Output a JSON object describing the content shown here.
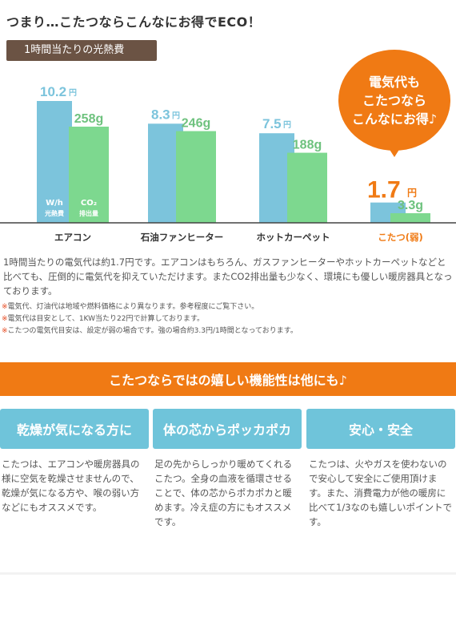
{
  "header": {
    "title": "つまり…こたつならこんなにお得でECO！",
    "subtitle": "1時間当たりの光熱費"
  },
  "bubble": {
    "line1": "電気代も",
    "line2": "こたつなら",
    "line3": "こんなにお得♪"
  },
  "chart_data": {
    "type": "bar",
    "title": "1時間当たりの光熱費",
    "categories": [
      "エアコン",
      "石油ファンヒーター",
      "ホットカーペット",
      "こたつ(弱)"
    ],
    "series": [
      {
        "name": "W/h 光熱費",
        "unit": "円",
        "values": [
          10.2,
          8.3,
          7.5,
          1.7
        ],
        "color": "#7cc4dc"
      },
      {
        "name": "CO₂ 排出量",
        "unit": "g",
        "values": [
          258,
          246,
          188,
          3.3
        ],
        "color": "#7dd88f"
      }
    ],
    "value_labels": {
      "cost": [
        "10.2",
        "8.3",
        "7.5",
        "1.7"
      ],
      "co2": [
        "258g",
        "246g",
        "188g",
        "3.3g"
      ]
    },
    "in_bar_labels": {
      "cost": [
        "W/h",
        "光熱費"
      ],
      "co2": [
        "CO₂",
        "排出量"
      ]
    },
    "cost_unit": "円",
    "highlight_category": "こたつ(弱)",
    "highlight_color": "#f07a14",
    "label_colors": {
      "cost": "#7cc4dc",
      "co2": "#6ec27e"
    },
    "legend": "in-bar",
    "grid": false
  },
  "description": "1時間当たりの電気代は約1.7円です。エアコンはもちろん、ガスファンヒーターやホットカーペットなどと比べても、圧倒的に電気代を抑えていただけます。またCO2排出量も少なく、環境にも優しい暖房器具となっております。",
  "notes": [
    {
      "mark": "※",
      "text": "電気代、灯油代は地域や燃料価格により異なります。参考程度にご覧下さい。"
    },
    {
      "mark": "※",
      "text": "電気代は目安として、1KW当たり22円で計算しております。"
    },
    {
      "mark": "※",
      "text": "こたつの電気代目安は、設定が弱の場合です。強の場合約3.3円/1時間となっております。"
    }
  ],
  "banner": "こたつならではの嬉しい機能性は他にも♪",
  "features": [
    {
      "heading": "乾燥が気になる方に",
      "text": "こたつは、エアコンや暖房器具の様に空気を乾燥させませんので、乾燥が気になる方や、喉の弱い方などにもオススメです。"
    },
    {
      "heading": "体の芯からポッカポカ",
      "text": "足の先からしっかり暖めてくれるこたつ。全身の血液を循環させることで、体の芯からポカポカと暖めます。冷え症の方にもオススメです。"
    },
    {
      "heading": "安心・安全",
      "text": "こたつは、火やガスを使わないので安心して安全にご使用頂けます。また、消費電力が他の暖房に比べて1/3なのも嬉しいポイントです。"
    }
  ]
}
